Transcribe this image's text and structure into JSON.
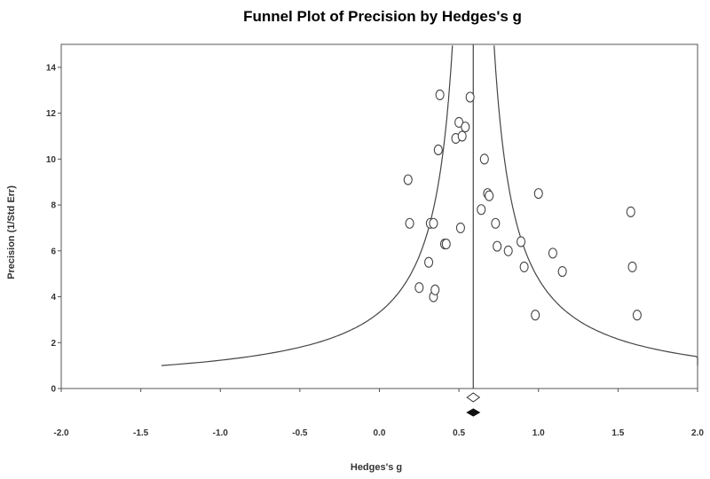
{
  "chart_data": {
    "type": "scatter",
    "title": "Funnel Plot of Precision by Hedges's g",
    "xlabel": "Hedges's g",
    "ylabel": "Precision (1/Std Err)",
    "xlim": [
      -2.0,
      2.0
    ],
    "ylim": [
      0,
      15
    ],
    "x_ticks": [
      "-2.0",
      "-1.5",
      "-1.0",
      "-0.5",
      "0.0",
      "0.5",
      "1.0",
      "1.5",
      "2.0"
    ],
    "y_ticks": [
      "0",
      "2",
      "4",
      "6",
      "8",
      "10",
      "12",
      "14"
    ],
    "grid": false,
    "summary_effect": 0.59,
    "funnel": "pseudo 95% confidence limits (±1.96 / precision)",
    "summary_diamonds": [
      {
        "style": "open",
        "center": 0.59
      },
      {
        "style": "filled",
        "center": 0.59
      }
    ],
    "points": [
      {
        "x": 0.18,
        "y": 9.1
      },
      {
        "x": 0.19,
        "y": 7.2
      },
      {
        "x": 0.25,
        "y": 4.4
      },
      {
        "x": 0.31,
        "y": 5.5
      },
      {
        "x": 0.32,
        "y": 7.2
      },
      {
        "x": 0.34,
        "y": 7.2
      },
      {
        "x": 0.34,
        "y": 4.0
      },
      {
        "x": 0.35,
        "y": 4.3
      },
      {
        "x": 0.37,
        "y": 10.4
      },
      {
        "x": 0.38,
        "y": 12.8
      },
      {
        "x": 0.41,
        "y": 6.3
      },
      {
        "x": 0.42,
        "y": 6.3
      },
      {
        "x": 0.48,
        "y": 10.9
      },
      {
        "x": 0.5,
        "y": 11.6
      },
      {
        "x": 0.51,
        "y": 7.0
      },
      {
        "x": 0.52,
        "y": 11.0
      },
      {
        "x": 0.54,
        "y": 11.4
      },
      {
        "x": 0.57,
        "y": 12.7
      },
      {
        "x": 0.64,
        "y": 7.8
      },
      {
        "x": 0.66,
        "y": 10.0
      },
      {
        "x": 0.68,
        "y": 8.5
      },
      {
        "x": 0.69,
        "y": 8.4
      },
      {
        "x": 0.73,
        "y": 7.2
      },
      {
        "x": 0.74,
        "y": 6.2
      },
      {
        "x": 0.81,
        "y": 6.0
      },
      {
        "x": 0.89,
        "y": 6.4
      },
      {
        "x": 0.91,
        "y": 5.3
      },
      {
        "x": 0.98,
        "y": 3.2
      },
      {
        "x": 1.0,
        "y": 8.5
      },
      {
        "x": 1.09,
        "y": 5.9
      },
      {
        "x": 1.15,
        "y": 5.1
      },
      {
        "x": 1.58,
        "y": 7.7
      },
      {
        "x": 1.59,
        "y": 5.3
      },
      {
        "x": 1.62,
        "y": 3.2
      }
    ]
  }
}
